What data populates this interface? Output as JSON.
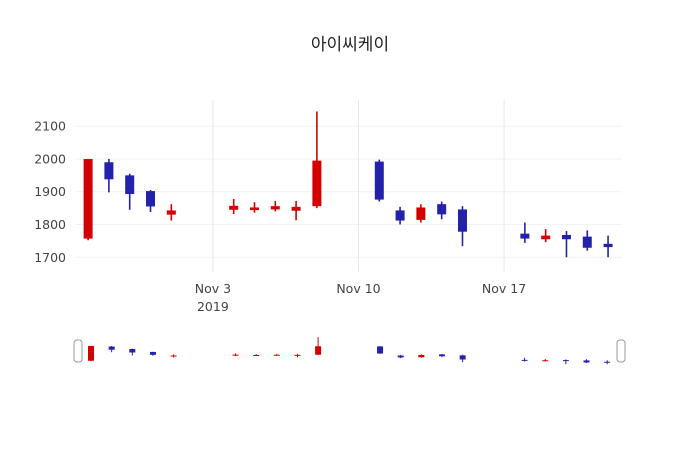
{
  "chart_data": {
    "type": "candlestick",
    "title": "아이씨케이",
    "y_ticks": [
      1700,
      1800,
      1900,
      2000,
      2100
    ],
    "y_range": [
      1655,
      2180
    ],
    "x_ticks": [
      {
        "label": "Nov 3",
        "sublabel": "2019",
        "date": "2019-11-03"
      },
      {
        "label": "Nov 10",
        "sublabel": "",
        "date": "2019-11-10"
      },
      {
        "label": "Nov 17",
        "sublabel": "",
        "date": "2019-11-17"
      }
    ],
    "colors": {
      "increasing": "#d40000",
      "decreasing": "#2222aa",
      "tick_text": "#444444",
      "grid_vertical": "#e8e8e8",
      "grid_horizontal": "#f2f2f2",
      "handle_fill": "#ffffff",
      "handle_stroke": "#999999"
    },
    "grid": true,
    "legend": "none",
    "rangeslider": true,
    "ohlc": [
      {
        "date": "2019-10-28",
        "open": 1757,
        "high": 2000,
        "low": 1752,
        "close": 2000
      },
      {
        "date": "2019-10-29",
        "open": 1990,
        "high": 2000,
        "low": 1898,
        "close": 1938
      },
      {
        "date": "2019-10-30",
        "open": 1950,
        "high": 1955,
        "low": 1845,
        "close": 1893
      },
      {
        "date": "2019-10-31",
        "open": 1902,
        "high": 1905,
        "low": 1838,
        "close": 1855
      },
      {
        "date": "2019-11-01",
        "open": 1830,
        "high": 1862,
        "low": 1812,
        "close": 1843
      },
      {
        "date": "2019-11-04",
        "open": 1845,
        "high": 1878,
        "low": 1832,
        "close": 1857
      },
      {
        "date": "2019-11-05",
        "open": 1844,
        "high": 1868,
        "low": 1836,
        "close": 1852
      },
      {
        "date": "2019-11-06",
        "open": 1846,
        "high": 1872,
        "low": 1840,
        "close": 1856
      },
      {
        "date": "2019-11-07",
        "open": 1842,
        "high": 1872,
        "low": 1813,
        "close": 1854
      },
      {
        "date": "2019-11-08",
        "open": 1856,
        "high": 2145,
        "low": 1850,
        "close": 1995
      },
      {
        "date": "2019-11-11",
        "open": 1992,
        "high": 1998,
        "low": 1870,
        "close": 1876
      },
      {
        "date": "2019-11-12",
        "open": 1843,
        "high": 1854,
        "low": 1800,
        "close": 1812
      },
      {
        "date": "2019-11-13",
        "open": 1814,
        "high": 1862,
        "low": 1806,
        "close": 1852
      },
      {
        "date": "2019-11-14",
        "open": 1862,
        "high": 1870,
        "low": 1816,
        "close": 1831
      },
      {
        "date": "2019-11-15",
        "open": 1846,
        "high": 1856,
        "low": 1734,
        "close": 1778
      },
      {
        "date": "2019-11-18",
        "open": 1772,
        "high": 1806,
        "low": 1744,
        "close": 1757
      },
      {
        "date": "2019-11-19",
        "open": 1755,
        "high": 1786,
        "low": 1746,
        "close": 1766
      },
      {
        "date": "2019-11-20",
        "open": 1768,
        "high": 1780,
        "low": 1700,
        "close": 1755
      },
      {
        "date": "2019-11-21",
        "open": 1763,
        "high": 1782,
        "low": 1720,
        "close": 1729
      },
      {
        "date": "2019-11-22",
        "open": 1741,
        "high": 1766,
        "low": 1700,
        "close": 1731
      }
    ]
  }
}
